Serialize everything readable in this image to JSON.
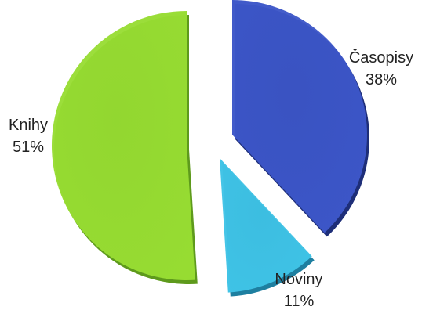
{
  "chart_data": {
    "type": "pie",
    "title": "",
    "exploded": true,
    "style": "3d-shaded",
    "slices": [
      {
        "label": "Časopisy",
        "value": 38,
        "percent_label": "38%",
        "color": "#3C56C8",
        "dark_color": "#1E2E78"
      },
      {
        "label": "Noviny",
        "value": 11,
        "percent_label": "11%",
        "color": "#3FC3E6",
        "dark_color": "#1E7FA0"
      },
      {
        "label": "Knihy",
        "value": 51,
        "percent_label": "51%",
        "color": "#97DC32",
        "dark_color": "#5E9A1C"
      }
    ]
  }
}
